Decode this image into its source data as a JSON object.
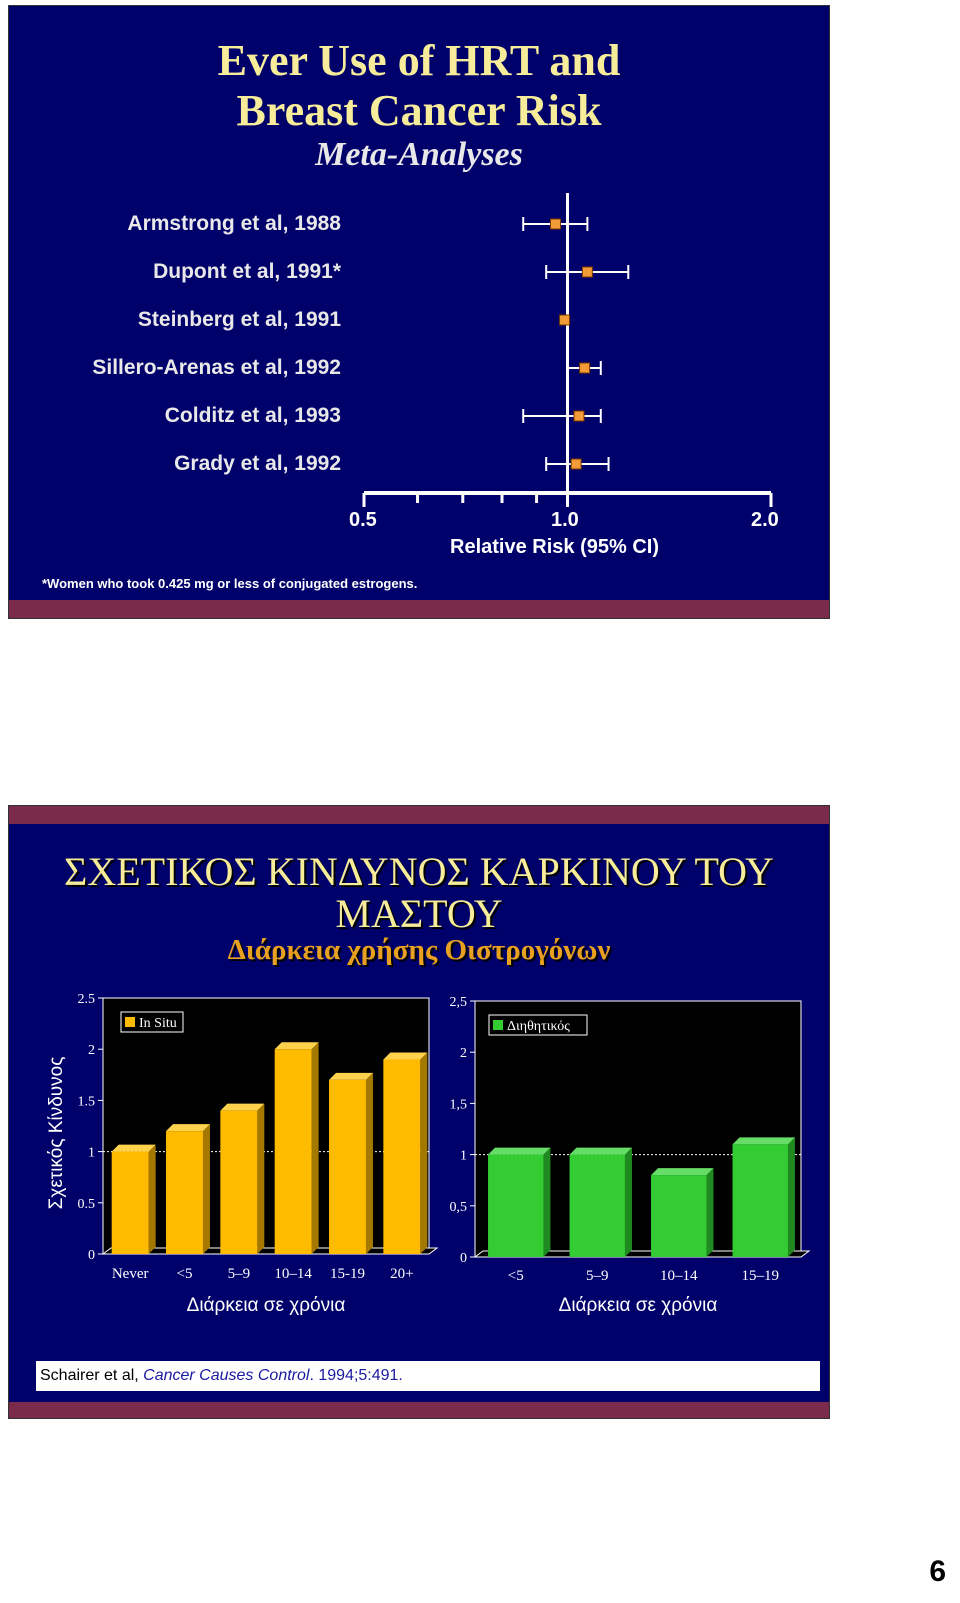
{
  "slide1": {
    "title_line1": "Ever Use of HRT and",
    "title_line2": "Breast Cancer Risk",
    "subtitle": "Meta-Analyses",
    "studies": [
      "Armstrong et al, 1988",
      "Dupont et al, 1991*",
      "Steinberg et al, 1991",
      "Sillero-Arenas et al, 1992",
      "Colditz et al, 1993",
      "Grady et al, 1992"
    ],
    "footnote": "*Women who took 0.425 mg or less of conjugated estrogens.",
    "axis_label": "Relative Risk (95% CI)",
    "axis_ticks": [
      "0.5",
      "1.0",
      "2.0"
    ]
  },
  "slide2": {
    "title_line1": "ΣΧΕΤΙΚΟΣ ΚΙΝΔΥΝΟΣ ΚΑΡΚΙΝΟΥ ΤΟΥ",
    "title_line2": "ΜΑΣΤΟΥ",
    "subtitle": "Διάρκεια χρήσης Οιστρογόνων",
    "ylabel": "Σχετικός Κίνδυνος",
    "source_authors": "Schairer et al, ",
    "source_journal": "Cancer Causes Control",
    "source_rest": ". 1994;5:491."
  },
  "page_number": "6",
  "colors": {
    "slide_bg": "#00006b",
    "footer_bar": "#7a2a4a",
    "title_yellow": "#f6ec9a",
    "subtitle_orange": "#e8a020",
    "marker_orange": "#f29b38",
    "bar_yellow": "#ffbb00",
    "bar_green": "#33cc33"
  },
  "chart_data": [
    {
      "type": "scatter",
      "title": "Ever Use of HRT and Breast Cancer Risk",
      "xlabel": "Relative Risk (95% CI)",
      "xscale": "log",
      "xlim": [
        0.5,
        2.0
      ],
      "x_ticks": [
        "0.5",
        "1.0",
        "2.0"
      ],
      "reference_line": 1.0,
      "series": [
        {
          "label": "Armstrong et al, 1988",
          "rr": 0.96,
          "ci_low": 0.86,
          "ci_high": 1.07
        },
        {
          "label": "Dupont et al, 1991*",
          "rr": 1.07,
          "ci_low": 0.93,
          "ci_high": 1.23
        },
        {
          "label": "Steinberg et al, 1991",
          "rr": 0.99,
          "ci_low": null,
          "ci_high": null
        },
        {
          "label": "Sillero-Arenas et al, 1992",
          "rr": 1.06,
          "ci_low": 1.0,
          "ci_high": 1.12
        },
        {
          "label": "Colditz et al, 1993",
          "rr": 1.04,
          "ci_low": 0.86,
          "ci_high": 1.12
        },
        {
          "label": "Grady et al, 1992",
          "rr": 1.03,
          "ci_low": 0.93,
          "ci_high": 1.15
        }
      ]
    },
    {
      "type": "bar",
      "legend": "In Situ",
      "categories": [
        "Never",
        "<5",
        "5–9",
        "10–14",
        "15-19",
        "20+"
      ],
      "values": [
        1.0,
        1.2,
        1.4,
        2.0,
        1.7,
        1.9
      ],
      "xlabel": "Διάρκεια σε χρόνια",
      "ylabel": "Σχετικός Κίνδυνος",
      "ylim": [
        0,
        2.5
      ],
      "y_ticks": [
        "0",
        "0.5",
        "1",
        "1.5",
        "2",
        "2.5"
      ],
      "reference_line": 1.0
    },
    {
      "type": "bar",
      "legend": "Διηθητικός",
      "categories": [
        "<5",
        "5–9",
        "10–14",
        "15–19"
      ],
      "values": [
        1.0,
        1.0,
        0.8,
        1.1
      ],
      "xlabel": "Διάρκεια σε χρόνια",
      "ylim": [
        0,
        2.5
      ],
      "y_ticks": [
        "0",
        "0,5",
        "1",
        "1,5",
        "2",
        "2,5"
      ],
      "reference_line": 1.0
    }
  ]
}
